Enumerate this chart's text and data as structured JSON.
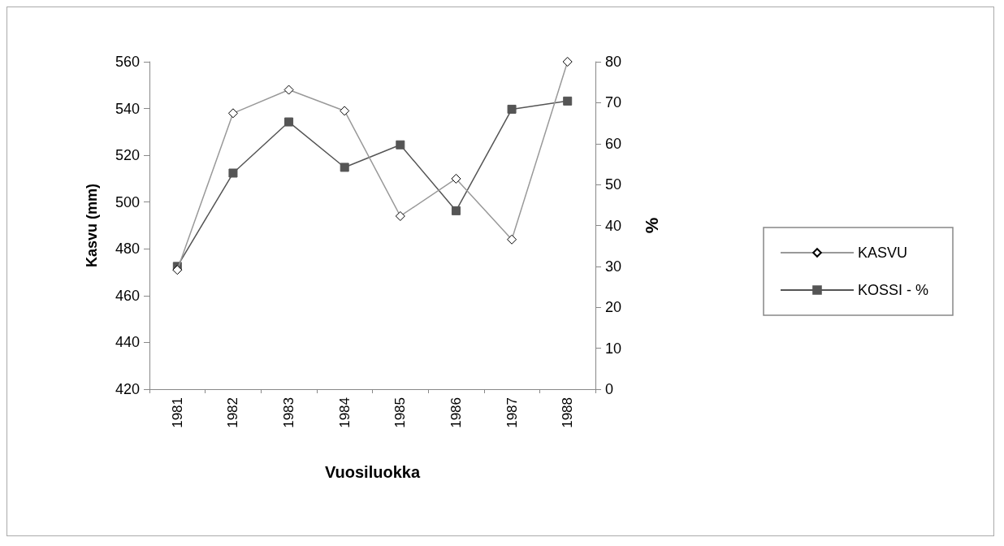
{
  "chart_data": {
    "type": "line",
    "xlabel": "Vuosiluokka",
    "ylabel": "Kasvu (mm)",
    "y2label": "%",
    "categories": [
      "1981",
      "1982",
      "1983",
      "1984",
      "1985",
      "1986",
      "1987",
      "1988"
    ],
    "series": [
      {
        "name": "KASVU",
        "color": "#999999",
        "marker": "diamond",
        "values": [
          471,
          538,
          548,
          539,
          494,
          510,
          484,
          560
        ]
      },
      {
        "name": "KOSSI - %",
        "color": "#555555",
        "marker": "square",
        "axis": "y2",
        "values": [
          30,
          52.8,
          65.3,
          54.2,
          59.7,
          43.6,
          68.4,
          70.4
        ]
      }
    ],
    "ylim": [
      420,
      560
    ],
    "yticks": [
      420,
      440,
      460,
      480,
      500,
      520,
      540,
      560
    ],
    "y2lim": [
      0,
      80
    ],
    "y2ticks": [
      0,
      10,
      20,
      30,
      40,
      50,
      60,
      70,
      80
    ],
    "grid": false,
    "legend": "right"
  }
}
